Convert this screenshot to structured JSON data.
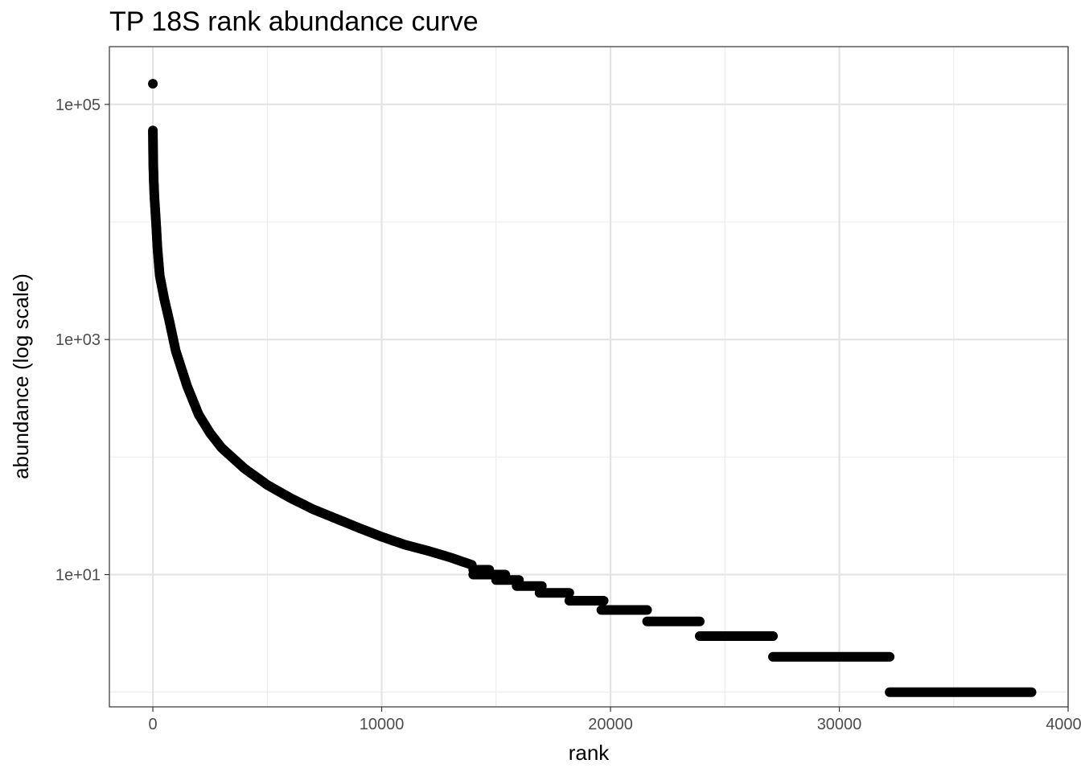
{
  "chart_data": {
    "type": "scatter",
    "title": "TP 18S rank abundance curve",
    "xlabel": "rank",
    "ylabel": "abundance (log scale)",
    "x_scale": "linear",
    "y_scale": "log10",
    "xlim": [
      -1900,
      40000
    ],
    "ylim": [
      0.75,
      310000
    ],
    "x_ticks": [
      {
        "value": 0,
        "label": "0"
      },
      {
        "value": 10000,
        "label": "10000"
      },
      {
        "value": 20000,
        "label": "20000"
      },
      {
        "value": 30000,
        "label": "30000"
      },
      {
        "value": 40000,
        "label": "40000"
      }
    ],
    "y_ticks": [
      {
        "value": 10,
        "label": "1e+01"
      },
      {
        "value": 1000,
        "label": "1e+03"
      },
      {
        "value": 100000,
        "label": "1e+05"
      }
    ],
    "grid": true,
    "marker_color": "#000000",
    "curve_points": [
      {
        "x": 1,
        "y": 60000
      },
      {
        "x": 5,
        "y": 50000
      },
      {
        "x": 10,
        "y": 40000
      },
      {
        "x": 20,
        "y": 30000
      },
      {
        "x": 40,
        "y": 22000
      },
      {
        "x": 70,
        "y": 16000
      },
      {
        "x": 100,
        "y": 13000
      },
      {
        "x": 150,
        "y": 9000
      },
      {
        "x": 200,
        "y": 6000
      },
      {
        "x": 300,
        "y": 3500
      },
      {
        "x": 500,
        "y": 2200
      },
      {
        "x": 700,
        "y": 1500
      },
      {
        "x": 1000,
        "y": 800
      },
      {
        "x": 1500,
        "y": 400
      },
      {
        "x": 2000,
        "y": 230
      },
      {
        "x": 2500,
        "y": 160
      },
      {
        "x": 3000,
        "y": 120
      },
      {
        "x": 4000,
        "y": 80
      },
      {
        "x": 5000,
        "y": 58
      },
      {
        "x": 6000,
        "y": 45
      },
      {
        "x": 7000,
        "y": 36
      },
      {
        "x": 8000,
        "y": 30
      },
      {
        "x": 9000,
        "y": 25
      },
      {
        "x": 10000,
        "y": 21
      },
      {
        "x": 11000,
        "y": 18
      },
      {
        "x": 12000,
        "y": 16
      },
      {
        "x": 13000,
        "y": 14
      },
      {
        "x": 14000,
        "y": 12
      }
    ],
    "plateaus": [
      {
        "y": 11,
        "x_start": 14000,
        "x_end": 14700
      },
      {
        "y": 10,
        "x_start": 14000,
        "x_end": 15400
      },
      {
        "y": 9,
        "x_start": 15000,
        "x_end": 16000
      },
      {
        "y": 8,
        "x_start": 15900,
        "x_end": 17000
      },
      {
        "y": 7,
        "x_start": 16900,
        "x_end": 18200
      },
      {
        "y": 6,
        "x_start": 18200,
        "x_end": 19700
      },
      {
        "y": 5,
        "x_start": 19600,
        "x_end": 21600
      },
      {
        "y": 4,
        "x_start": 21600,
        "x_end": 23900
      },
      {
        "y": 3,
        "x_start": 23900,
        "x_end": 27100
      },
      {
        "y": 2,
        "x_start": 27100,
        "x_end": 32200
      },
      {
        "y": 1,
        "x_start": 32200,
        "x_end": 38400
      }
    ],
    "outliers": [
      {
        "x": 0,
        "y": 150000
      }
    ]
  }
}
